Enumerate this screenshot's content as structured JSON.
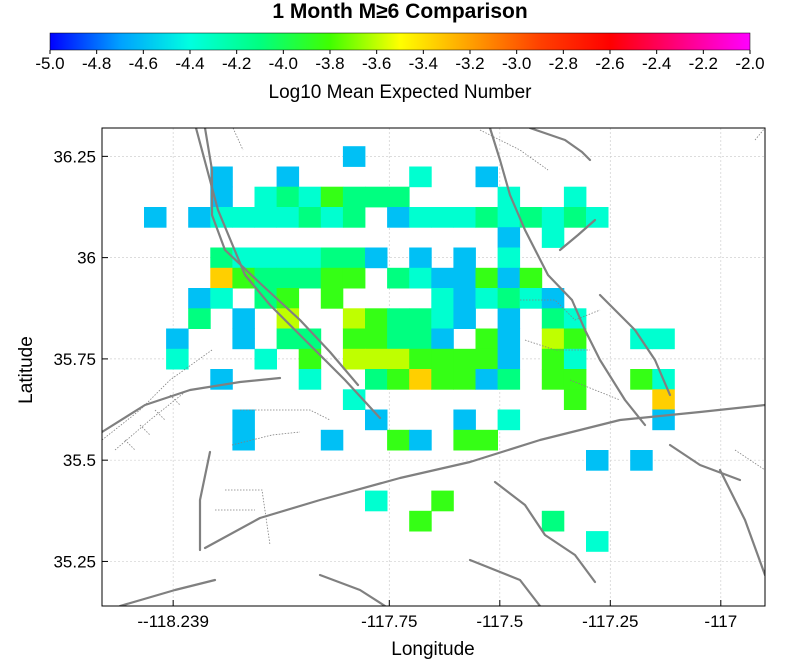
{
  "chart_data": {
    "type": "heatmap",
    "title": "1 Month M≥6 Comparison",
    "colorbar": {
      "label": "Log10 Mean Expected Number",
      "min": -5.0,
      "max": -2.0,
      "ticks": [
        "-5.0",
        "-4.8",
        "-4.6",
        "-4.4",
        "-4.2",
        "-4.0",
        "-3.8",
        "-3.6",
        "-3.4",
        "-3.2",
        "-3.0",
        "-2.8",
        "-2.6",
        "-2.4",
        "-2.2",
        "-2.0"
      ],
      "colors": [
        "#0000ff",
        "#00a0ff",
        "#00ffe0",
        "#00ff80",
        "#40ff00",
        "#ffff00",
        "#ffa000",
        "#ff4000",
        "#ff0000",
        "#ff0080",
        "#ff00ff"
      ]
    },
    "xlabel": "Longitude",
    "ylabel": "Latitude",
    "xlim": [
      -118.4,
      -116.9
    ],
    "ylim": [
      35.14,
      36.32
    ],
    "xticks": [
      {
        "v": -118.239,
        "label": "--118.239"
      },
      {
        "v": -117.75,
        "label": "-117.75"
      },
      {
        "v": -117.5,
        "label": "-117.5"
      },
      {
        "v": -117.25,
        "label": "-117.25"
      },
      {
        "v": -117.0,
        "label": "-117"
      }
    ],
    "yticks": [
      {
        "v": 36.25,
        "label": "36.25"
      },
      {
        "v": 36.0,
        "label": "36"
      },
      {
        "v": 35.75,
        "label": "35.75"
      },
      {
        "v": 35.5,
        "label": "35.5"
      },
      {
        "v": 35.25,
        "label": "35.25"
      }
    ],
    "grid": true,
    "cell_origin": {
      "lon": -118.405,
      "lat": 36.325
    },
    "cell_size_deg": 0.05,
    "cells_note": "rows top-to-bottom, '.' = no data, digit d => log10 value -4.6 + 0.25*d",
    "rows": [
      "..........................",
      "...........0..............",
      ".....0..0.....1..0........",
      ".....0.1213222....1..1....",
      "..0.01111212.0111212121...",
      "..................0.1.....",
      ".....21111220.0.0.1.......",
      ".....5322233.2100303......",
      "....01.23.3....101210.....",
      "....2.0.4..432210.0.21....",
      "...0..0.22.33220.30.43..11",
      "...1...1.3.44433330.31....",
      ".....0...1..2353302.33..31",
      "...........1.........3...5",
      "......0.....0...0.1......0",
      "......0...0..30.33........",
      "......................0.0.",
      "..........................",
      "............1..3..........",
      "..............3.....2.....",
      "......................1...",
      "..........................",
      "..........................",
      ".........................."
    ]
  }
}
